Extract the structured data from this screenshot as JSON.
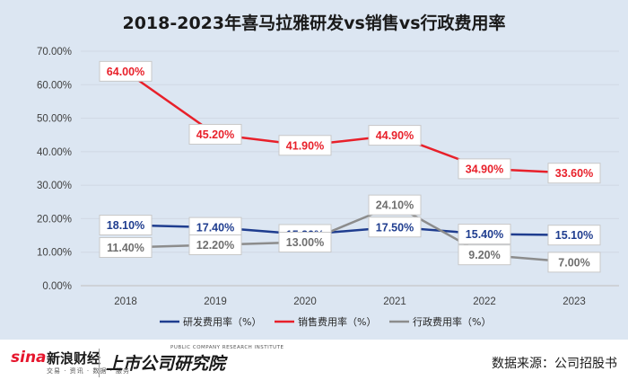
{
  "chart_data": {
    "type": "line",
    "title": "2018-2023年喜马拉雅研发vs销售vs行政费用率",
    "categories": [
      "2018",
      "2019",
      "2020",
      "2021",
      "2022",
      "2023"
    ],
    "ylim": [
      0,
      70
    ],
    "yticks": [
      "0.00%",
      "10.00%",
      "20.00%",
      "30.00%",
      "40.00%",
      "50.00%",
      "60.00%",
      "70.00%"
    ],
    "grid": true,
    "legend_position": "bottom",
    "series": [
      {
        "name": "研发费用率（%）",
        "color": "#1f3d8f",
        "values": [
          18.1,
          17.4,
          15.3,
          17.5,
          15.4,
          15.1
        ],
        "labels": [
          "18.10%",
          "17.40%",
          "15.30%",
          "17.50%",
          "15.40%",
          "15.10%"
        ]
      },
      {
        "name": "销售费用率（%）",
        "color": "#e8202a",
        "values": [
          64.0,
          45.2,
          41.9,
          44.9,
          34.9,
          33.6
        ],
        "labels": [
          "64.00%",
          "45.20%",
          "41.90%",
          "44.90%",
          "34.90%",
          "33.60%"
        ]
      },
      {
        "name": "行政费用率（%）",
        "color": "#8c8c8c",
        "values": [
          11.4,
          12.2,
          13.0,
          24.1,
          9.2,
          7.0
        ],
        "labels": [
          "11.40%",
          "12.20%",
          "13.00%",
          "24.10%",
          "9.20%",
          "7.00%"
        ]
      }
    ]
  },
  "footer": {
    "sina_logo": "sina",
    "sina_name": "新浪财经",
    "sina_tagline": "交易 · 资讯 · 数据 · 服务",
    "institute_en": "PUBLIC COMPANY RESEARCH INSTITUTE",
    "institute_name": "上市公司研究院",
    "source": "数据来源：公司招股书"
  }
}
